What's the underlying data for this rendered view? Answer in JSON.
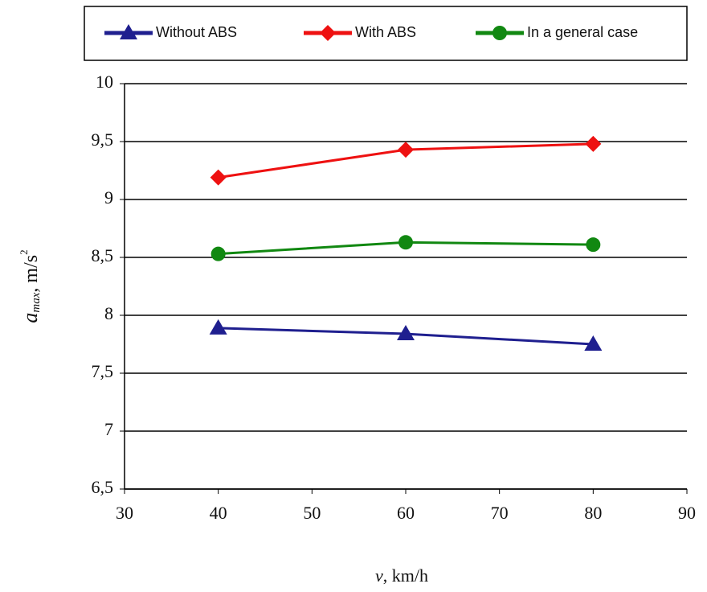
{
  "chart_data": {
    "type": "line",
    "xlabel": {
      "symbol": "v",
      "unit": ", km/h"
    },
    "ylabel": {
      "symbol": "a",
      "subscript": "max",
      "unit": ", m/s",
      "superscript": "2"
    },
    "x": [
      40,
      60,
      80
    ],
    "series": [
      {
        "name": "Without ABS",
        "color": "#1f1f8f",
        "marker": "triangle",
        "values": [
          7.89,
          7.84,
          7.75
        ]
      },
      {
        "name": "With ABS",
        "color": "#ee1111",
        "marker": "diamond",
        "values": [
          9.19,
          9.43,
          9.48
        ]
      },
      {
        "name": "In a general case",
        "color": "#118811",
        "marker": "circle",
        "values": [
          8.53,
          8.63,
          8.61
        ]
      }
    ],
    "xlim": [
      30,
      90
    ],
    "xticks": [
      30,
      40,
      50,
      60,
      70,
      80,
      90
    ],
    "ylim": [
      6.5,
      10
    ],
    "yticks": [
      {
        "value": 6.5,
        "label": "6,5"
      },
      7,
      {
        "value": 7.5,
        "label": "7,5"
      },
      8,
      {
        "value": 8.5,
        "label": "8,5"
      },
      9,
      {
        "value": 9.5,
        "label": "9,5"
      },
      10
    ],
    "grid": true,
    "legend": "top"
  }
}
